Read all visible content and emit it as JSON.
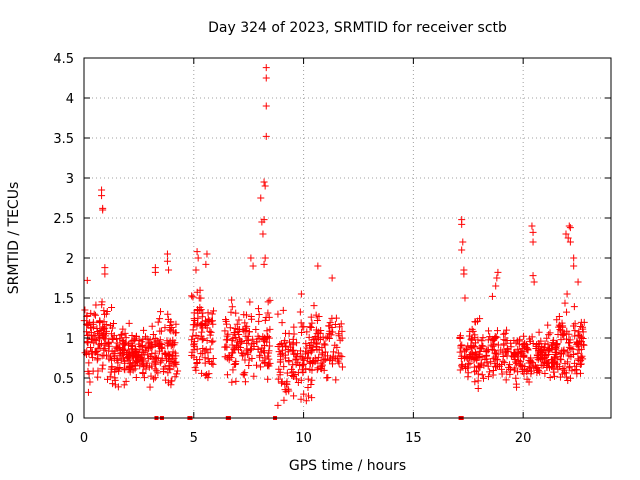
{
  "chart_data": {
    "type": "scatter",
    "title": "Day 324 of 2023, SRMTID for receiver sctb",
    "xlabel": "GPS time / hours",
    "ylabel": "SRMTID / TECUs",
    "xlim": [
      0,
      24
    ],
    "ylim": [
      0,
      4.5
    ],
    "xticks": [
      0,
      5,
      10,
      15,
      20
    ],
    "xtick_labels": [
      "0",
      "5",
      "10",
      "15",
      "20"
    ],
    "yticks": [
      0,
      0.5,
      1,
      1.5,
      2,
      2.5,
      3,
      3.5,
      4,
      4.5
    ],
    "ytick_labels": [
      "0",
      "0.5",
      "1",
      "1.5",
      "2",
      "2.5",
      "3",
      "3.5",
      "4",
      "4.5"
    ],
    "grid": true,
    "marker": "plus",
    "series": [
      {
        "name": "SRMTID",
        "color": "#ff0000",
        "clusters": [
          {
            "x_range": [
              0.0,
              1.3
            ],
            "y_range": [
              0.25,
              1.6
            ],
            "count": 120
          },
          {
            "x_range": [
              1.3,
              3.0
            ],
            "y_range": [
              0.3,
              1.25
            ],
            "count": 160
          },
          {
            "x_range": [
              3.0,
              4.3
            ],
            "y_range": [
              0.2,
              1.5
            ],
            "count": 110
          },
          {
            "x_range": [
              4.9,
              5.9
            ],
            "y_range": [
              0.3,
              1.8
            ],
            "count": 90
          },
          {
            "x_range": [
              6.4,
              8.5
            ],
            "y_range": [
              0.3,
              1.6
            ],
            "count": 150
          },
          {
            "x_range": [
              8.8,
              10.4
            ],
            "y_range": [
              0.05,
              1.5
            ],
            "count": 130
          },
          {
            "x_range": [
              10.4,
              11.8
            ],
            "y_range": [
              0.3,
              1.5
            ],
            "count": 90
          },
          {
            "x_range": [
              17.1,
              18.7
            ],
            "y_range": [
              0.25,
              1.35
            ],
            "count": 120
          },
          {
            "x_range": [
              18.7,
              21.5
            ],
            "y_range": [
              0.35,
              1.2
            ],
            "count": 220
          },
          {
            "x_range": [
              21.5,
              22.8
            ],
            "y_range": [
              0.3,
              1.5
            ],
            "count": 110
          }
        ],
        "spikes": [
          {
            "x": 0.8,
            "y": 2.85
          },
          {
            "x": 0.8,
            "y": 2.78
          },
          {
            "x": 0.85,
            "y": 2.62
          },
          {
            "x": 0.85,
            "y": 2.6
          },
          {
            "x": 0.15,
            "y": 1.72
          },
          {
            "x": 0.95,
            "y": 1.88
          },
          {
            "x": 0.95,
            "y": 1.8
          },
          {
            "x": 3.25,
            "y": 1.88
          },
          {
            "x": 3.25,
            "y": 1.82
          },
          {
            "x": 3.8,
            "y": 2.05
          },
          {
            "x": 3.8,
            "y": 1.96
          },
          {
            "x": 3.85,
            "y": 1.85
          },
          {
            "x": 5.15,
            "y": 2.08
          },
          {
            "x": 5.2,
            "y": 2.0
          },
          {
            "x": 5.6,
            "y": 2.05
          },
          {
            "x": 5.55,
            "y": 1.92
          },
          {
            "x": 5.1,
            "y": 1.85
          },
          {
            "x": 7.6,
            "y": 2.0
          },
          {
            "x": 7.7,
            "y": 1.9
          },
          {
            "x": 8.05,
            "y": 2.75
          },
          {
            "x": 8.1,
            "y": 2.45
          },
          {
            "x": 8.15,
            "y": 2.3
          },
          {
            "x": 8.2,
            "y": 2.48
          },
          {
            "x": 8.2,
            "y": 2.95
          },
          {
            "x": 8.25,
            "y": 2.9
          },
          {
            "x": 8.25,
            "y": 2.0
          },
          {
            "x": 8.2,
            "y": 1.92
          },
          {
            "x": 8.3,
            "y": 3.52
          },
          {
            "x": 8.3,
            "y": 3.9
          },
          {
            "x": 8.3,
            "y": 4.25
          },
          {
            "x": 8.3,
            "y": 4.38
          },
          {
            "x": 10.65,
            "y": 1.9
          },
          {
            "x": 11.3,
            "y": 1.75
          },
          {
            "x": 9.9,
            "y": 1.55
          },
          {
            "x": 17.2,
            "y": 2.48
          },
          {
            "x": 17.2,
            "y": 2.42
          },
          {
            "x": 17.25,
            "y": 2.2
          },
          {
            "x": 17.2,
            "y": 2.1
          },
          {
            "x": 17.3,
            "y": 1.85
          },
          {
            "x": 17.3,
            "y": 1.8
          },
          {
            "x": 17.35,
            "y": 1.5
          },
          {
            "x": 18.85,
            "y": 1.82
          },
          {
            "x": 18.8,
            "y": 1.75
          },
          {
            "x": 18.75,
            "y": 1.65
          },
          {
            "x": 18.6,
            "y": 1.52
          },
          {
            "x": 20.4,
            "y": 2.4
          },
          {
            "x": 20.45,
            "y": 2.32
          },
          {
            "x": 20.45,
            "y": 2.2
          },
          {
            "x": 20.45,
            "y": 1.78
          },
          {
            "x": 20.5,
            "y": 1.7
          },
          {
            "x": 21.95,
            "y": 2.3
          },
          {
            "x": 22.05,
            "y": 2.25
          },
          {
            "x": 22.1,
            "y": 2.4
          },
          {
            "x": 22.15,
            "y": 2.38
          },
          {
            "x": 22.15,
            "y": 2.2
          },
          {
            "x": 22.3,
            "y": 2.0
          },
          {
            "x": 22.3,
            "y": 1.9
          },
          {
            "x": 22.0,
            "y": 1.55
          },
          {
            "x": 22.5,
            "y": 1.7
          }
        ],
        "zero_points": [
          3.3,
          3.55,
          4.8,
          4.85,
          6.55,
          6.6,
          8.7,
          17.15,
          17.2
        ]
      }
    ]
  }
}
